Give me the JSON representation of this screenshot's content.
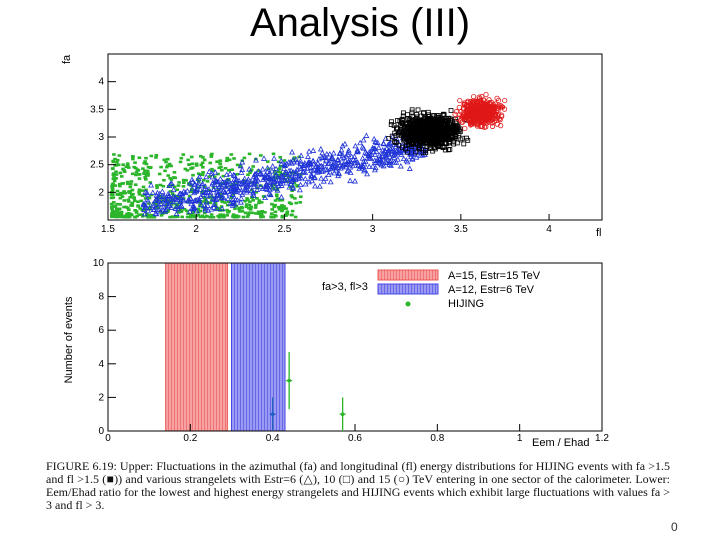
{
  "slide": {
    "title": "Analysis (III)",
    "page_number": "0"
  },
  "caption": "FIGURE 6.19: Upper: Fluctuations in the azimuthal (fa) and longitudinal (fl) energy distributions for HIJING events with fa >1.5 and fl >1.5 (■)) and various strangelets with Estr=6 (△), 10 (□) and 15 (○) TeV entering in one sector of the calorimeter. Lower: Eem/Ehad ratio for the lowest and highest energy strangelets and HIJING events which exhibit large fluctuations with values fa > 3 and fl > 3.",
  "chart_data": [
    {
      "type": "scatter",
      "xlabel": "fl",
      "ylabel": "fa",
      "xlim": [
        1.5,
        4.3
      ],
      "ylim": [
        1.5,
        4.5
      ],
      "x_ticks": [
        "1.5",
        "2",
        "2.5",
        "3",
        "3.5",
        "4"
      ],
      "y_ticks": [
        "2",
        "2.5",
        "3",
        "3.5",
        "4"
      ],
      "grid": false,
      "colors": {
        "green": "#2bb52b",
        "blue": "#1f33d6",
        "black": "#000000",
        "red": "#e01818"
      },
      "series": [
        {
          "marker": "filled-square",
          "color": "green",
          "region": {
            "x": [
              1.52,
              2.6
            ],
            "y": [
              1.55,
              2.7
            ]
          },
          "count": 650
        },
        {
          "marker": "open-triangle",
          "color": "blue",
          "region": {
            "x": [
              1.7,
              3.3
            ],
            "y": [
              1.6,
              3.3
            ]
          },
          "count": 750
        },
        {
          "marker": "open-square",
          "color": "black",
          "region": {
            "x": [
              3.0,
              3.65
            ],
            "y": [
              2.55,
              3.65
            ]
          },
          "count": 750
        },
        {
          "marker": "open-circle",
          "color": "red",
          "region": {
            "x": [
              3.4,
              3.82
            ],
            "y": [
              3.0,
              3.9
            ]
          },
          "count": 420
        }
      ]
    },
    {
      "type": "bar",
      "ylabel": "Number of events",
      "xlabel": "Eem / Ehad",
      "xlim": [
        0,
        1.2
      ],
      "ylim": [
        0,
        10
      ],
      "x_ticks": [
        "0",
        "0.2",
        "0.4",
        "0.6",
        "0.8",
        "1",
        "1.2"
      ],
      "y_ticks": [
        "0",
        "2",
        "4",
        "6",
        "8",
        "10"
      ],
      "annotation": "fa>3, fl>3",
      "legend_position": "top-right",
      "bands": [
        {
          "name": "A=15, Estr=15 TeV",
          "color": "#ee5555",
          "x_range": [
            0.14,
            0.29
          ],
          "value": 10
        },
        {
          "name": "A=12, Estr=6 TeV",
          "color": "#4747e6",
          "x_range": [
            0.3,
            0.43
          ],
          "value": 10
        }
      ],
      "points": {
        "name": "HIJING",
        "color": "#2bb52b",
        "values": [
          {
            "x": 0.4,
            "y": 1,
            "yerr": 1,
            "color": "#1f5fbf"
          },
          {
            "x": 0.44,
            "y": 3,
            "yerr": 1.7
          },
          {
            "x": 0.57,
            "y": 1,
            "yerr": 1
          }
        ]
      }
    }
  ]
}
